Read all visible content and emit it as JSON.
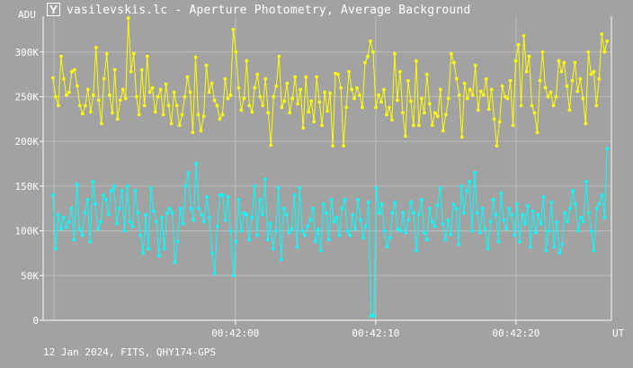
{
  "window": {
    "title": "vasilevskis.lc - Aperture Photometry, Average Background"
  },
  "footer": {
    "text": "12 Jan 2024, FITS, QHY174-GPS"
  },
  "colors": {
    "background": "#a2a2a2",
    "grid": "#bdbdbd",
    "axis": "#ffffff",
    "series1": "#ffff00",
    "series2": "#00ffff"
  },
  "chart_data": {
    "type": "scatter",
    "ylabel": "ADU",
    "xlabel": "UT",
    "ylim": [
      0,
      340000
    ],
    "xlim": [
      -13.7,
      26.8
    ],
    "grid": true,
    "yticks": [
      0,
      50000,
      100000,
      150000,
      200000,
      250000,
      300000
    ],
    "ytick_labels": [
      "0",
      "50K",
      "100K",
      "150K",
      "200K",
      "250K",
      "300K"
    ],
    "xticks": [
      0,
      10,
      20
    ],
    "xtick_labels": [
      "00:42:00",
      "00:42:10",
      "00:42:20"
    ],
    "series": [
      {
        "values": [
          271,
          250,
          240,
          295,
          270,
          252,
          255,
          278,
          280,
          262,
          240,
          231,
          240,
          258,
          233,
          252,
          305,
          246,
          220,
          270,
          298,
          252,
          232,
          280,
          225,
          246,
          258,
          248,
          338,
          278,
          298,
          250,
          230,
          280,
          240,
          295,
          255,
          260,
          233,
          250,
          258,
          230,
          264,
          240,
          220,
          255,
          240,
          218,
          230,
          250,
          272,
          255,
          210,
          294,
          230,
          212,
          228,
          285,
          255,
          265,
          246,
          240,
          225,
          230,
          270,
          248,
          252,
          325,
          300,
          260,
          235,
          248,
          290,
          240,
          233,
          260,
          275,
          250,
          240,
          270,
          232,
          196,
          250,
          262,
          295,
          238,
          245,
          265,
          232,
          248,
          272,
          242,
          258,
          215,
          272,
          233,
          245,
          222,
          272,
          244,
          218,
          255,
          234,
          254,
          195,
          276,
          275,
          260,
          195,
          238,
          278,
          258,
          248,
          260,
          252,
          238,
          288,
          295,
          312,
          300,
          238,
          252,
          244,
          258,
          230,
          238,
          224,
          298,
          246,
          278,
          232,
          206,
          268,
          245,
          218,
          290,
          218,
          248,
          232,
          275,
          242,
          218,
          232,
          228,
          258,
          212,
          230,
          248,
          298,
          288,
          270,
          252,
          205,
          265,
          248,
          258,
          252,
          285,
          235,
          256,
          252,
          270,
          236,
          258,
          225,
          195,
          222,
          262,
          250,
          248,
          268,
          218,
          290,
          308,
          240,
          318,
          278,
          295,
          240,
          232,
          210,
          268,
          300,
          260,
          250,
          255,
          240,
          250,
          290,
          278,
          288,
          262,
          235,
          268,
          288,
          256,
          270,
          248,
          220,
          300,
          275,
          278,
          240,
          270,
          320,
          300,
          312
        ]
      },
      {
        "values": [
          140,
          80,
          118,
          102,
          115,
          104,
          110,
          125,
          90,
          152,
          102,
          95,
          120,
          135,
          88,
          155,
          130,
          102,
          110,
          140,
          135,
          118,
          145,
          150,
          108,
          125,
          145,
          100,
          150,
          110,
          105,
          145,
          120,
          95,
          75,
          118,
          80,
          148,
          122,
          110,
          72,
          115,
          80,
          120,
          125,
          120,
          65,
          88,
          125,
          108,
          150,
          165,
          125,
          112,
          175,
          125,
          118,
          110,
          138,
          115,
          75,
          52,
          105,
          140,
          140,
          112,
          138,
          100,
          50,
          88,
          135,
          100,
          120,
          118,
          90,
          115,
          150,
          95,
          135,
          118,
          158,
          90,
          108,
          80,
          100,
          148,
          68,
          125,
          118,
          98,
          102,
          140,
          82,
          148,
          100,
          95,
          105,
          112,
          125,
          88,
          102,
          78,
          130,
          120,
          90,
          135,
          110,
          115,
          95,
          125,
          135,
          100,
          95,
          118,
          102,
          135,
          112,
          92,
          105,
          132,
          5,
          5,
          148,
          120,
          130,
          100,
          82,
          92,
          120,
          132,
          102,
          100,
          120,
          98,
          112,
          132,
          120,
          78,
          118,
          135,
          98,
          90,
          125,
          110,
          105,
          128,
          148,
          108,
          90,
          112,
          96,
          130,
          125,
          85,
          150,
          120,
          145,
          155,
          100,
          165,
          120,
          98,
          125,
          102,
          80,
          110,
          135,
          118,
          88,
          142,
          112,
          102,
          125,
          118,
          95,
          130,
          88,
          118,
          108,
          128,
          82,
          122,
          98,
          118,
          108,
          138,
          78,
          100,
          132,
          82,
          110,
          75,
          85,
          120,
          110,
          125,
          145,
          130,
          100,
          115,
          110,
          155,
          120,
          100,
          78,
          125,
          130,
          140,
          115,
          192
        ]
      }
    ]
  }
}
